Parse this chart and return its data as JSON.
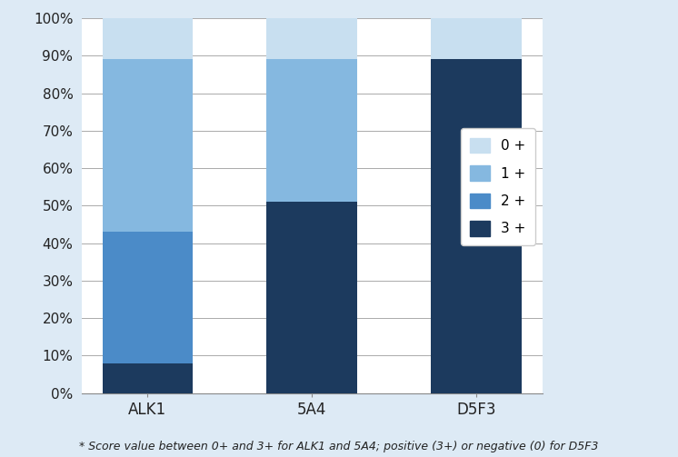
{
  "categories": [
    "ALK1",
    "5A4",
    "D5F3"
  ],
  "series": {
    "3 +": [
      8,
      51,
      89
    ],
    "2 +": [
      35,
      0,
      0
    ],
    "1 +": [
      46,
      38,
      0
    ],
    "0 +": [
      11,
      11,
      11
    ]
  },
  "colors": {
    "3 +": "#1c3a5e",
    "2 +": "#4b8bc8",
    "1 +": "#85b8e0",
    "0 +": "#c8dff0"
  },
  "legend_order": [
    "0 +",
    "1 +",
    "2 +",
    "3 +"
  ],
  "ylim": [
    0,
    100
  ],
  "yticks": [
    0,
    10,
    20,
    30,
    40,
    50,
    60,
    70,
    80,
    90,
    100
  ],
  "yticklabels": [
    "0%",
    "10%",
    "20%",
    "30%",
    "40%",
    "50%",
    "60%",
    "70%",
    "80%",
    "90%",
    "100%"
  ],
  "footnote": "* Score value between 0+ and 3+ for ALK1 and 5A4; positive (3+) or negative (0) for D5F3",
  "plot_bg_color": "#ffffff",
  "fig_bg_color": "#ddeaf5",
  "bar_width": 0.55,
  "grid_color": "#aaaaaa"
}
